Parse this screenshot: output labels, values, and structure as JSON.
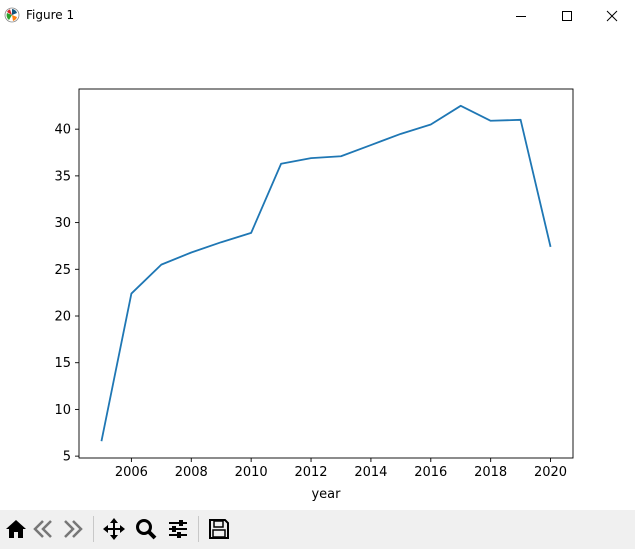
{
  "window": {
    "title": "Figure 1"
  },
  "toolbar": {
    "buttons": [
      "home-icon",
      "back-icon",
      "forward-icon",
      "pan-icon",
      "zoom-icon",
      "configure-subplots-icon",
      "save-icon"
    ]
  },
  "colors": {
    "line": "#1f77b4",
    "toolbar_bg": "#f0f0f0"
  },
  "chart_data": {
    "type": "line",
    "title": "",
    "xlabel": "year",
    "ylabel": "",
    "x": [
      2005,
      2006,
      2007,
      2008,
      2009,
      2010,
      2011,
      2012,
      2013,
      2014,
      2015,
      2016,
      2017,
      2018,
      2019,
      2020
    ],
    "series": [
      {
        "values": [
          6.6,
          22.4,
          25.5,
          26.8,
          27.9,
          28.9,
          36.3,
          36.9,
          37.1,
          38.3,
          39.5,
          40.5,
          42.5,
          40.9,
          41.0,
          27.4
        ]
      }
    ],
    "xlim": [
      2004.25,
      2020.75
    ],
    "ylim": [
      4.8,
      44.3
    ],
    "xticks": [
      "2006",
      "2008",
      "2010",
      "2012",
      "2014",
      "2016",
      "2018",
      "2020"
    ],
    "yticks": [
      "5",
      "10",
      "15",
      "20",
      "25",
      "30",
      "35",
      "40"
    ],
    "grid": false
  }
}
